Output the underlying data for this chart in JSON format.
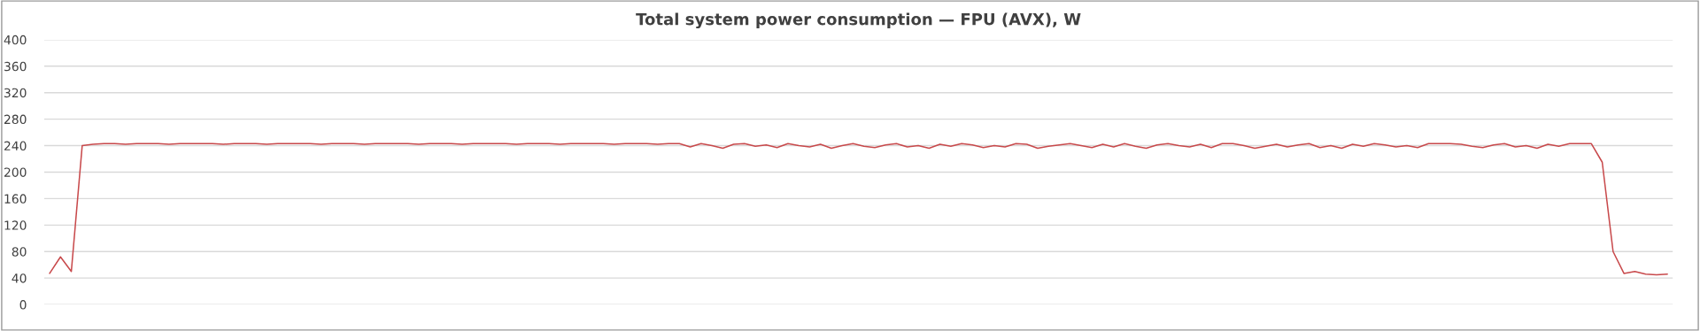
{
  "chart_data": {
    "type": "line",
    "title": "Total system power consumption — FPU (AVX), W",
    "categories": [
      null,
      null,
      null,
      null,
      null,
      null,
      null,
      null,
      null,
      null,
      null,
      null,
      null,
      null,
      null,
      null,
      null,
      null,
      null,
      null,
      null,
      null,
      null,
      null,
      null,
      null,
      null,
      null,
      null,
      null,
      null,
      null,
      null,
      null,
      null,
      null,
      null,
      null,
      null,
      null,
      null,
      null,
      null,
      null,
      null,
      null,
      null,
      null,
      null,
      null,
      null,
      null,
      null,
      null,
      null,
      null,
      null,
      null,
      null,
      null,
      null,
      null,
      null,
      null,
      null,
      null,
      null,
      null,
      null,
      null,
      null,
      null,
      null,
      null,
      null,
      null,
      null,
      null,
      null,
      null,
      null,
      null,
      null,
      null,
      null,
      null,
      null,
      null,
      null,
      null,
      null,
      null,
      null,
      null,
      null,
      null,
      null,
      null,
      null,
      null,
      null,
      null,
      null,
      null,
      null,
      null,
      null,
      null,
      null,
      null,
      null,
      null,
      null,
      null,
      null,
      null,
      null,
      null,
      null,
      null,
      null,
      null,
      null,
      null,
      null,
      null,
      null,
      null,
      null,
      null,
      null,
      null,
      null,
      null,
      null,
      null,
      null,
      null,
      null,
      null,
      null,
      null,
      null,
      null,
      null,
      null,
      null,
      null,
      null,
      null
    ],
    "series": [
      {
        "color": "#c8494b",
        "values": [
          47,
          72,
          50,
          240,
          242,
          243,
          243,
          242,
          243,
          243,
          243,
          242,
          243,
          243,
          243,
          243,
          242,
          243,
          243,
          243,
          242,
          243,
          243,
          243,
          243,
          242,
          243,
          243,
          243,
          242,
          243,
          243,
          243,
          243,
          242,
          243,
          243,
          243,
          242,
          243,
          243,
          243,
          243,
          242,
          243,
          243,
          243,
          242,
          243,
          243,
          243,
          243,
          242,
          243,
          243,
          243,
          242,
          243,
          243,
          238,
          243,
          240,
          236,
          242,
          243,
          239,
          241,
          237,
          243,
          240,
          238,
          242,
          236,
          240,
          243,
          239,
          237,
          241,
          243,
          238,
          240,
          236,
          242,
          239,
          243,
          241,
          237,
          240,
          238,
          243,
          242,
          236,
          239,
          241,
          243,
          240,
          237,
          242,
          238,
          243,
          239,
          236,
          241,
          243,
          240,
          238,
          242,
          237,
          243,
          243,
          240,
          236,
          239,
          242,
          238,
          241,
          243,
          237,
          240,
          236,
          242,
          239,
          243,
          241,
          238,
          240,
          237,
          243,
          243,
          243,
          242,
          239,
          237,
          241,
          243,
          238,
          240,
          236,
          242,
          239,
          243,
          243,
          243,
          215,
          80,
          47,
          50,
          46,
          45,
          46
        ]
      }
    ],
    "ylim": [
      0,
      400
    ],
    "yticks": [
      0,
      40,
      80,
      120,
      160,
      200,
      240,
      280,
      320,
      360,
      400
    ],
    "grid": "y",
    "legend": false
  }
}
